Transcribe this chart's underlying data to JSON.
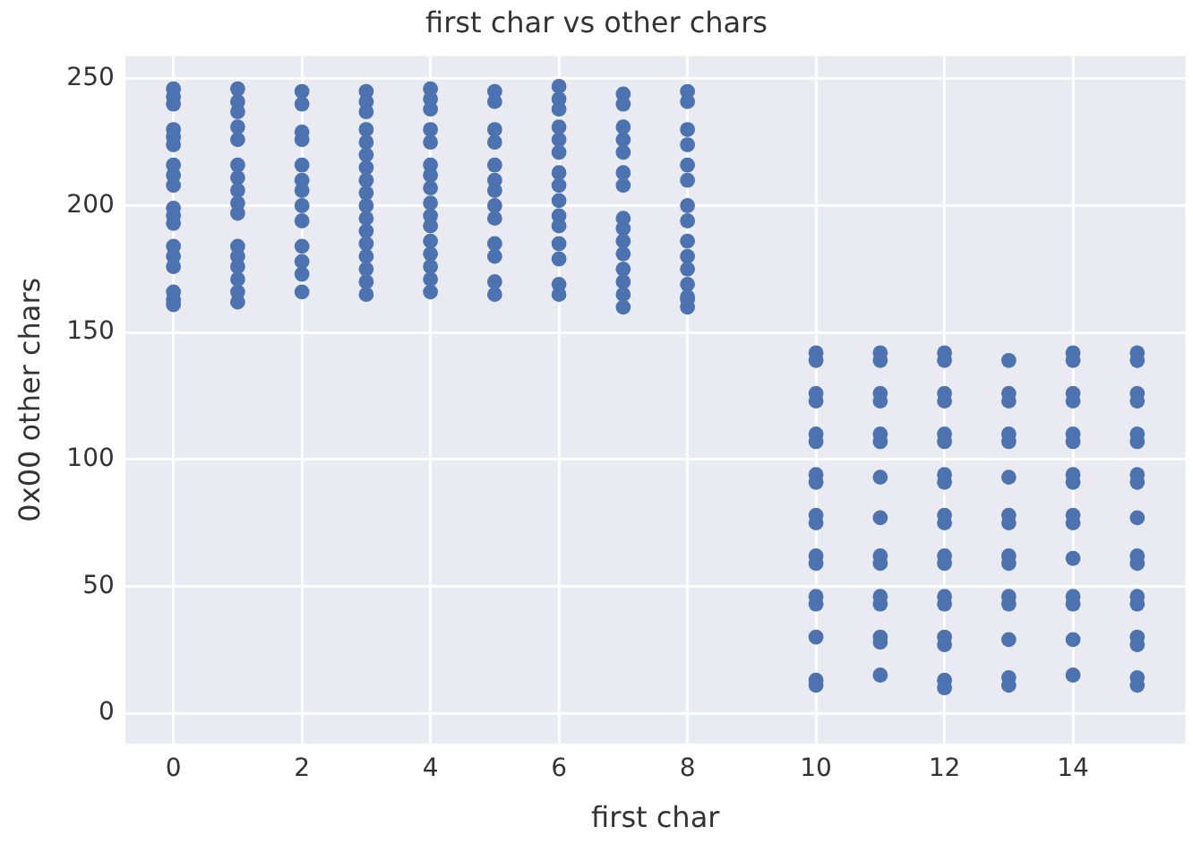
{
  "chart_data": {
    "type": "scatter",
    "title": "first char vs other chars",
    "xlabel": "first char",
    "ylabel": "0x00 other chars",
    "xlim": [
      -0.75,
      15.75
    ],
    "xticks": [
      0,
      2,
      4,
      6,
      8,
      10,
      12,
      14
    ],
    "ylim": [
      -12,
      259
    ],
    "yticks": [
      0,
      50,
      100,
      150,
      200,
      250
    ],
    "grid": true,
    "marker": "circle",
    "series": [
      {
        "color": "#4c72b0",
        "x": [
          0,
          0,
          0,
          0,
          0,
          0,
          0,
          0,
          0,
          0,
          0,
          0,
          0,
          0,
          0,
          0,
          0,
          0,
          1,
          1,
          1,
          1,
          1,
          1,
          1,
          1,
          1,
          1,
          1,
          1,
          1,
          1,
          1,
          1,
          2,
          2,
          2,
          2,
          2,
          2,
          2,
          2,
          2,
          2,
          2,
          2,
          2,
          3,
          3,
          3,
          3,
          3,
          3,
          3,
          3,
          3,
          3,
          3,
          3,
          3,
          3,
          3,
          3,
          3,
          4,
          4,
          4,
          4,
          4,
          4,
          4,
          4,
          4,
          4,
          4,
          4,
          4,
          4,
          4,
          4,
          5,
          5,
          5,
          5,
          5,
          5,
          5,
          5,
          5,
          5,
          5,
          5,
          5,
          6,
          6,
          6,
          6,
          6,
          6,
          6,
          6,
          6,
          6,
          6,
          6,
          6,
          6,
          6,
          7,
          7,
          7,
          7,
          7,
          7,
          7,
          7,
          7,
          7,
          7,
          7,
          7,
          7,
          7,
          8,
          8,
          8,
          8,
          8,
          8,
          8,
          8,
          8,
          8,
          8,
          8,
          8,
          8,
          8,
          10,
          10,
          10,
          10,
          10,
          10,
          10,
          10,
          10,
          10,
          10,
          10,
          10,
          10,
          10,
          10,
          10,
          11,
          11,
          11,
          11,
          11,
          11,
          11,
          11,
          11,
          11,
          11,
          11,
          11,
          11,
          11,
          12,
          12,
          12,
          12,
          12,
          12,
          12,
          12,
          12,
          12,
          12,
          12,
          12,
          12,
          12,
          12,
          12,
          12,
          13,
          13,
          13,
          13,
          13,
          13,
          13,
          13,
          13,
          13,
          13,
          13,
          13,
          13,
          13,
          14,
          14,
          14,
          14,
          14,
          14,
          14,
          14,
          14,
          14,
          14,
          14,
          14,
          14,
          14,
          15,
          15,
          15,
          15,
          15,
          15,
          15,
          15,
          15,
          15,
          15,
          15,
          15,
          15,
          15,
          15,
          15
        ],
        "values": [
          246,
          243,
          240,
          230,
          227,
          224,
          216,
          212,
          208,
          199,
          196,
          193,
          184,
          180,
          176,
          166,
          163,
          161,
          246,
          241,
          237,
          231,
          226,
          216,
          211,
          206,
          201,
          197,
          184,
          180,
          176,
          171,
          166,
          162,
          245,
          240,
          229,
          226,
          216,
          210,
          206,
          200,
          194,
          184,
          178,
          173,
          166,
          245,
          241,
          237,
          230,
          225,
          220,
          215,
          210,
          205,
          200,
          195,
          190,
          185,
          180,
          175,
          170,
          165,
          246,
          242,
          238,
          230,
          225,
          216,
          212,
          207,
          201,
          196,
          192,
          186,
          181,
          176,
          171,
          166,
          245,
          241,
          230,
          225,
          216,
          210,
          206,
          200,
          195,
          185,
          180,
          170,
          165,
          247,
          242,
          238,
          231,
          226,
          221,
          213,
          208,
          202,
          196,
          192,
          185,
          179,
          169,
          165,
          244,
          240,
          231,
          226,
          221,
          213,
          208,
          195,
          191,
          186,
          181,
          175,
          170,
          165,
          160,
          245,
          241,
          230,
          224,
          216,
          210,
          200,
          194,
          186,
          180,
          175,
          169,
          164,
          160,
          163,
          142,
          139,
          126,
          123,
          110,
          107,
          94,
          91,
          78,
          75,
          62,
          59,
          46,
          43,
          30,
          13,
          11,
          142,
          139,
          126,
          123,
          110,
          107,
          93,
          77,
          62,
          59,
          46,
          43,
          30,
          28,
          15,
          142,
          139,
          126,
          123,
          110,
          107,
          94,
          91,
          78,
          75,
          62,
          59,
          46,
          43,
          30,
          27,
          13,
          10,
          139,
          126,
          123,
          110,
          107,
          93,
          78,
          75,
          62,
          59,
          46,
          43,
          29,
          14,
          11,
          142,
          139,
          126,
          123,
          110,
          107,
          94,
          91,
          78,
          75,
          61,
          46,
          43,
          29,
          15,
          142,
          139,
          126,
          123,
          110,
          107,
          94,
          91,
          77,
          62,
          59,
          46,
          43,
          30,
          27,
          14,
          11
        ]
      }
    ]
  }
}
